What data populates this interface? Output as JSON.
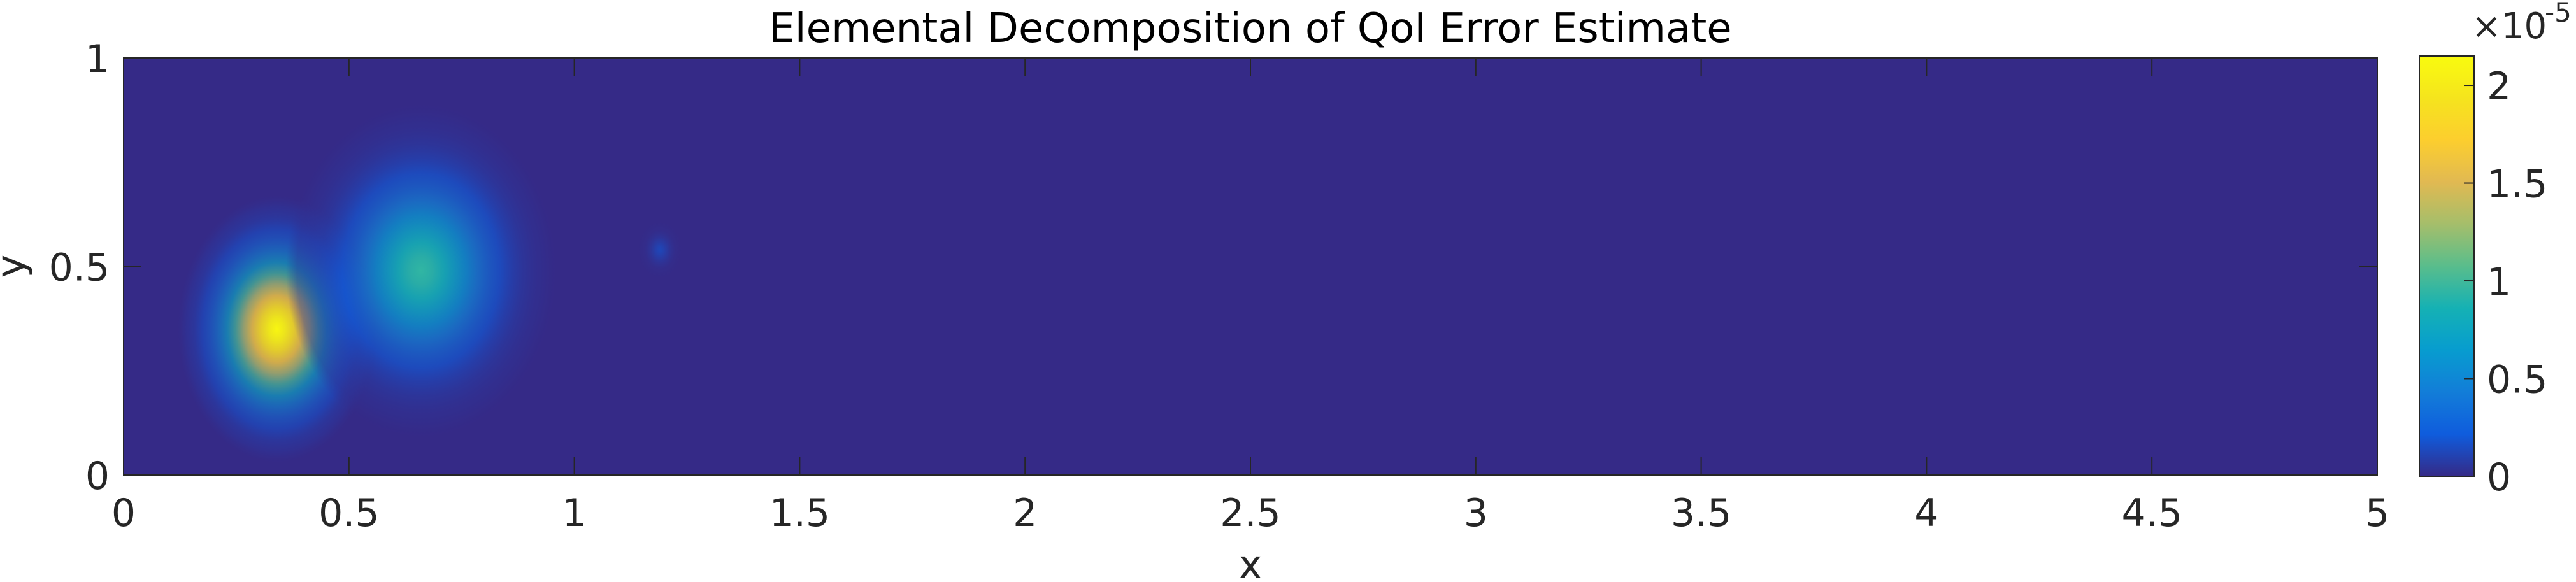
{
  "chart_data": {
    "type": "heatmap",
    "title": "Elemental Decomposition of QoI Error Estimate",
    "xlabel": "x",
    "ylabel": "y",
    "xlim": [
      0,
      5
    ],
    "ylim": [
      0,
      1
    ],
    "x_ticks": [
      "0",
      "0.5",
      "1",
      "1.5",
      "2",
      "2.5",
      "3",
      "3.5",
      "4",
      "4.5",
      "5"
    ],
    "y_ticks": [
      "0",
      "0.5",
      "1"
    ],
    "colorbar": {
      "colormap": "parula",
      "range": [
        0,
        2.15
      ],
      "exponent_label": "×10",
      "exponent_power": "-5",
      "ticks": [
        "0",
        "0.5",
        "1",
        "1.5",
        "2"
      ]
    },
    "features": [
      {
        "x": 0.34,
        "y": 0.35,
        "peak": 2.1,
        "rx": 0.22,
        "ry": 0.32
      },
      {
        "x": 0.66,
        "y": 0.49,
        "peak": 0.95,
        "rx": 0.3,
        "ry": 0.4
      },
      {
        "x": 1.19,
        "y": 0.54,
        "peak": 0.12,
        "rx": 0.05,
        "ry": 0.07
      }
    ],
    "grid": false
  }
}
